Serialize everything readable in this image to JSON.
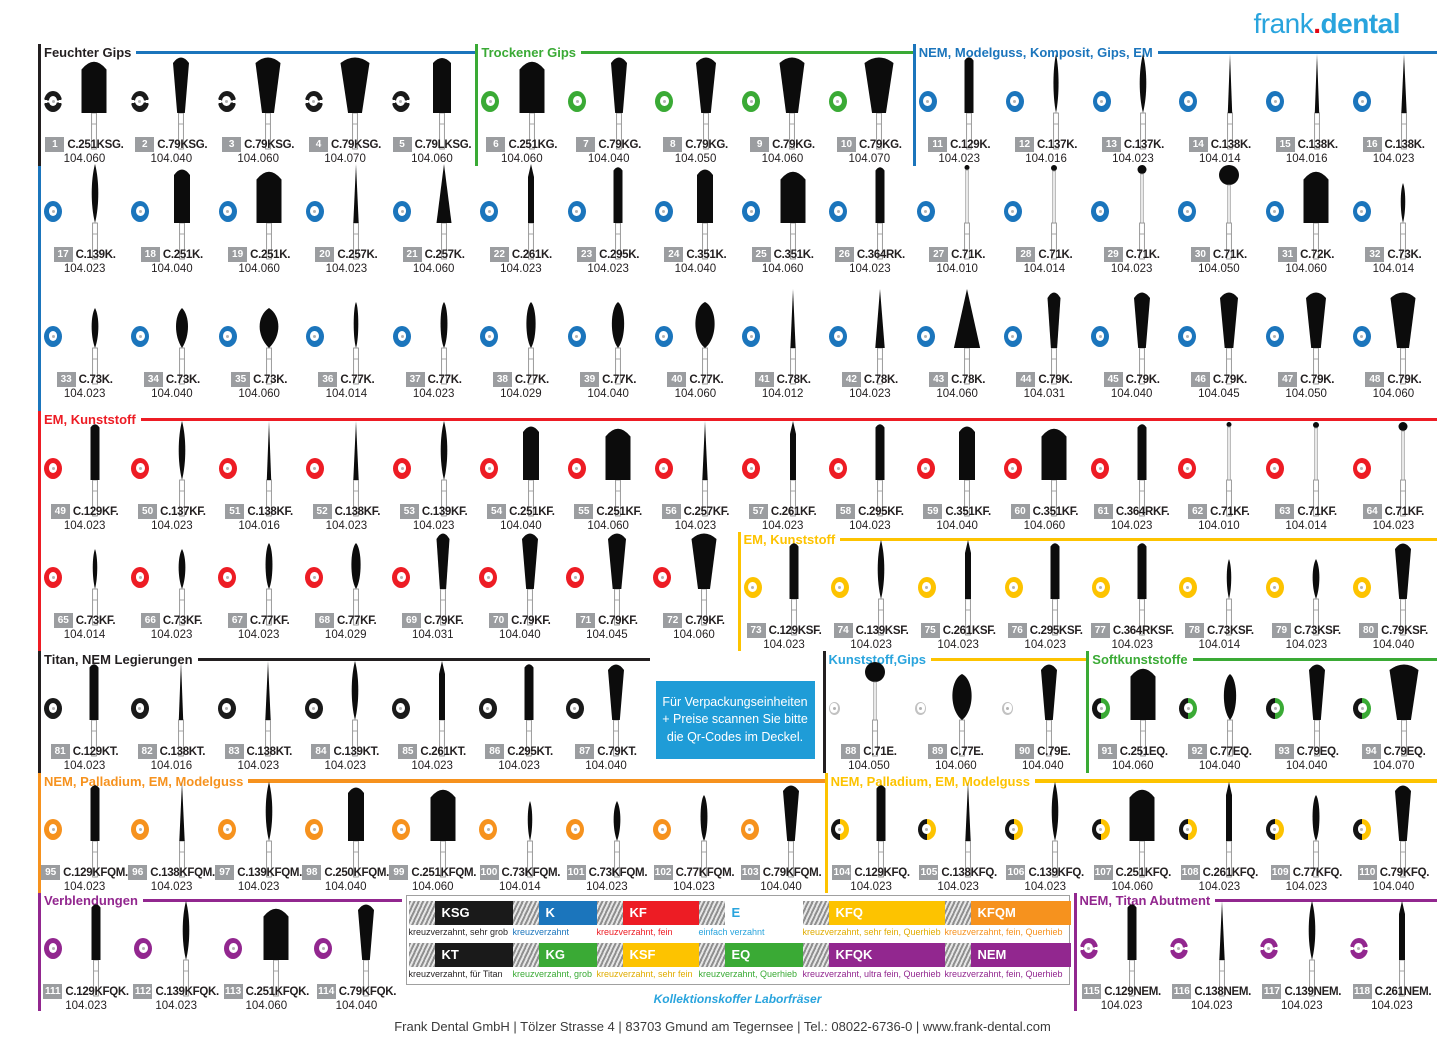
{
  "brand": {
    "word1": "frank",
    "dot": ".",
    "word2": "dental"
  },
  "info_box": {
    "lines": [
      "Für Verpackungseinheiten",
      "+ Preise scannen Sie bitte",
      "die Qr-Codes im Deckel."
    ]
  },
  "legend": {
    "caption": "Kollektionskoffer Laborfräser",
    "entries": [
      {
        "code": "KSG",
        "chip": "#1a1a1a",
        "code_color": "#ffffff",
        "desc": "kreuzverzahnt, sehr grob",
        "desc_color": "#231f20"
      },
      {
        "code": "K",
        "chip": "#1b75bc",
        "code_color": "#ffffff",
        "desc": "kreuzverzahnt",
        "desc_color": "#1b75bc"
      },
      {
        "code": "KF",
        "chip": "#ed1c24",
        "code_color": "#ffffff",
        "desc": "kreuzverzahnt, fein",
        "desc_color": "#ed1c24"
      },
      {
        "code": "E",
        "chip": "none",
        "code_color": "#29a4dd",
        "desc": "einfach verzahnt",
        "desc_color": "#29a4dd"
      },
      {
        "code": "KFQ",
        "chip": "#fdc300",
        "code_color": "#ffffff",
        "desc": "kreuzverzahnt, sehr fein, Querhieb",
        "desc_color": "#e0ac00"
      },
      {
        "code": "KFQM",
        "chip": "#f6921e",
        "code_color": "#ffffff",
        "desc": "kreuzverzahnt, fein, Querhieb",
        "desc_color": "#f6921e"
      },
      {
        "code": "KT",
        "chip": "#1a1a1a",
        "code_color": "#ffffff",
        "desc": "kreuzverzahnt, für Titan",
        "desc_color": "#231f20"
      },
      {
        "code": "KG",
        "chip": "#3aaa35",
        "code_color": "#ffffff",
        "desc": "kreuzverzahnt, grob",
        "desc_color": "#3aaa35"
      },
      {
        "code": "KSF",
        "chip": "#fdc300",
        "code_color": "#ffffff",
        "desc": "kreuzverzahnt, sehr fein",
        "desc_color": "#e0ac00"
      },
      {
        "code": "EQ",
        "chip": "#3aaa35",
        "code_color": "#ffffff",
        "desc": "kreuzverzahnt, Querhieb",
        "desc_color": "#3aaa35"
      },
      {
        "code": "KFQK",
        "chip": "#92278f",
        "code_color": "#ffffff",
        "desc": "kreuzverzahnt, ultra fein, Querhieb",
        "desc_color": "#92278f"
      },
      {
        "code": "NEM",
        "chip": "#92278f",
        "code_color": "#ffffff",
        "desc": "kreuzverzahnt, fein, Querhieb",
        "desc_color": "#92278f"
      }
    ]
  },
  "footer": {
    "text": "Frank Dental GmbH | Tölzer Strasse 4 | 83703 Gmund am Tegernsee | Tel.: 08022-6736-0 | www.frank-dental.com"
  },
  "sections": [
    {
      "id": "feuchter-gips",
      "label": "Feuchter Gips",
      "label_color": "#231f20",
      "line_color": "#1b75bc",
      "bar_color": "#231f20",
      "ring": {
        "style": "seg",
        "color": "#1a1a1a"
      },
      "items": [
        {
          "n": 1,
          "c": "C.251KSG.",
          "s": "104.060"
        },
        {
          "n": 2,
          "c": "C.79KSG.",
          "s": "104.040"
        },
        {
          "n": 3,
          "c": "C.79KSG.",
          "s": "104.060"
        },
        {
          "n": 4,
          "c": "C.79KSG.",
          "s": "104.070"
        },
        {
          "n": 5,
          "c": "C.79LKSG.",
          "s": "104.060"
        }
      ]
    },
    {
      "id": "trockener-gips",
      "label": "Trockener Gips",
      "label_color": "#3aaa35",
      "line_color": "#3aaa35",
      "bar_color": "#3aaa35",
      "ring": {
        "style": "solid",
        "color": "#3aaa35"
      },
      "items": [
        {
          "n": 6,
          "c": "C.251KG.",
          "s": "104.060"
        },
        {
          "n": 7,
          "c": "C.79KG.",
          "s": "104.040"
        },
        {
          "n": 8,
          "c": "C.79KG.",
          "s": "104.050"
        },
        {
          "n": 9,
          "c": "C.79KG.",
          "s": "104.060"
        },
        {
          "n": 10,
          "c": "C.79KG.",
          "s": "104.070"
        }
      ]
    },
    {
      "id": "nem-modelguss-komposit-gips-em",
      "label": "NEM, Modelguss, Komposit, Gips, EM",
      "label_color": "#1b75bc",
      "line_color": "#1b75bc",
      "bar_color": "#1b75bc",
      "ring": {
        "style": "solid",
        "color": "#1b75bc"
      },
      "items": [
        {
          "n": 11,
          "c": "C.129K.",
          "s": "104.023"
        },
        {
          "n": 12,
          "c": "C.137K.",
          "s": "104.016"
        },
        {
          "n": 13,
          "c": "C.137K.",
          "s": "104.023"
        },
        {
          "n": 14,
          "c": "C.138K.",
          "s": "104.014"
        },
        {
          "n": 15,
          "c": "C.138K.",
          "s": "104.016"
        },
        {
          "n": 16,
          "c": "C.138K.",
          "s": "104.023"
        },
        {
          "n": 17,
          "c": "C.139K.",
          "s": "104.023"
        },
        {
          "n": 18,
          "c": "C.251K.",
          "s": "104.040"
        },
        {
          "n": 19,
          "c": "C.251K.",
          "s": "104.060"
        },
        {
          "n": 20,
          "c": "C.257K.",
          "s": "104.023"
        },
        {
          "n": 21,
          "c": "C.257K.",
          "s": "104.060"
        },
        {
          "n": 22,
          "c": "C.261K.",
          "s": "104.023"
        },
        {
          "n": 23,
          "c": "C.295K.",
          "s": "104.023"
        },
        {
          "n": 24,
          "c": "C.351K.",
          "s": "104.040"
        },
        {
          "n": 25,
          "c": "C.351K.",
          "s": "104.060"
        },
        {
          "n": 26,
          "c": "C.364RK.",
          "s": "104.023"
        },
        {
          "n": 27,
          "c": "C.71K.",
          "s": "104.010"
        },
        {
          "n": 28,
          "c": "C.71K.",
          "s": "104.014"
        },
        {
          "n": 29,
          "c": "C.71K.",
          "s": "104.023"
        },
        {
          "n": 30,
          "c": "C.71K.",
          "s": "104.050"
        },
        {
          "n": 31,
          "c": "C.72K.",
          "s": "104.060"
        },
        {
          "n": 32,
          "c": "C.73K.",
          "s": "104.014"
        },
        {
          "n": 33,
          "c": "C.73K.",
          "s": "104.023"
        },
        {
          "n": 34,
          "c": "C.73K.",
          "s": "104.040"
        },
        {
          "n": 35,
          "c": "C.73K.",
          "s": "104.060"
        },
        {
          "n": 36,
          "c": "C.77K.",
          "s": "104.014"
        },
        {
          "n": 37,
          "c": "C.77K.",
          "s": "104.023"
        },
        {
          "n": 38,
          "c": "C.77K.",
          "s": "104.029"
        },
        {
          "n": 39,
          "c": "C.77K.",
          "s": "104.040"
        },
        {
          "n": 40,
          "c": "C.77K.",
          "s": "104.060"
        },
        {
          "n": 41,
          "c": "C.78K.",
          "s": "104.012"
        },
        {
          "n": 42,
          "c": "C.78K.",
          "s": "104.023"
        },
        {
          "n": 43,
          "c": "C.78K.",
          "s": "104.060"
        },
        {
          "n": 44,
          "c": "C.79K.",
          "s": "104.031"
        },
        {
          "n": 45,
          "c": "C.79K.",
          "s": "104.040"
        },
        {
          "n": 46,
          "c": "C.79K.",
          "s": "104.045"
        },
        {
          "n": 47,
          "c": "C.79K.",
          "s": "104.050"
        },
        {
          "n": 48,
          "c": "C.79K.",
          "s": "104.060"
        }
      ]
    },
    {
      "id": "em-kunststoff-rot",
      "label": "EM, Kunststoff",
      "label_color": "#ed1c24",
      "line_color": "#ed1c24",
      "bar_color": "#ed1c24",
      "ring": {
        "style": "solid",
        "color": "#ed1c24"
      },
      "items": [
        {
          "n": 49,
          "c": "C.129KF.",
          "s": "104.023"
        },
        {
          "n": 50,
          "c": "C.137KF.",
          "s": "104.023"
        },
        {
          "n": 51,
          "c": "C.138KF.",
          "s": "104.016"
        },
        {
          "n": 52,
          "c": "C.138KF.",
          "s": "104.023"
        },
        {
          "n": 53,
          "c": "C.139KF.",
          "s": "104.023"
        },
        {
          "n": 54,
          "c": "C.251KF.",
          "s": "104.040"
        },
        {
          "n": 55,
          "c": "C.251KF.",
          "s": "104.060"
        },
        {
          "n": 56,
          "c": "C.257KF.",
          "s": "104.023"
        },
        {
          "n": 57,
          "c": "C.261KF.",
          "s": "104.023"
        },
        {
          "n": 58,
          "c": "C.295KF.",
          "s": "104.023"
        },
        {
          "n": 59,
          "c": "C.351KF.",
          "s": "104.040"
        },
        {
          "n": 60,
          "c": "C.351KF.",
          "s": "104.060"
        },
        {
          "n": 61,
          "c": "C.364RKF.",
          "s": "104.023"
        },
        {
          "n": 62,
          "c": "C.71KF.",
          "s": "104.010"
        },
        {
          "n": 63,
          "c": "C.71KF.",
          "s": "104.014"
        },
        {
          "n": 64,
          "c": "C.71KF.",
          "s": "104.023"
        },
        {
          "n": 65,
          "c": "C.73KF.",
          "s": "104.014"
        },
        {
          "n": 66,
          "c": "C.73KF.",
          "s": "104.023"
        },
        {
          "n": 67,
          "c": "C.77KF.",
          "s": "104.023"
        },
        {
          "n": 68,
          "c": "C.77KF.",
          "s": "104.029"
        },
        {
          "n": 69,
          "c": "C.79KF.",
          "s": "104.031"
        },
        {
          "n": 70,
          "c": "C.79KF.",
          "s": "104.040"
        },
        {
          "n": 71,
          "c": "C.79KF.",
          "s": "104.045"
        },
        {
          "n": 72,
          "c": "C.79KF.",
          "s": "104.060"
        }
      ]
    },
    {
      "id": "em-kunststoff-gelb",
      "label": "EM, Kunststoff",
      "label_color": "#fdc300",
      "line_color": "#fdc300",
      "bar_color": "#fdc300",
      "ring": {
        "style": "solid",
        "color": "#fdc300"
      },
      "items": [
        {
          "n": 73,
          "c": "C.129KSF.",
          "s": "104.023"
        },
        {
          "n": 74,
          "c": "C.139KSF.",
          "s": "104.023"
        },
        {
          "n": 75,
          "c": "C.261KSF.",
          "s": "104.023"
        },
        {
          "n": 76,
          "c": "C.295KSF.",
          "s": "104.023"
        },
        {
          "n": 77,
          "c": "C.364RKSF.",
          "s": "104.023"
        },
        {
          "n": 78,
          "c": "C.73KSF.",
          "s": "104.014"
        },
        {
          "n": 79,
          "c": "C.73KSF.",
          "s": "104.023"
        },
        {
          "n": 80,
          "c": "C.79KSF.",
          "s": "104.040"
        }
      ]
    },
    {
      "id": "titan-nem-legierungen",
      "label": "Titan, NEM Legierungen",
      "label_color": "#231f20",
      "line_color": "#231f20",
      "bar_color": "#231f20",
      "ring": {
        "style": "solid",
        "color": "#1a1a1a"
      },
      "items": [
        {
          "n": 81,
          "c": "C.129KT.",
          "s": "104.023"
        },
        {
          "n": 82,
          "c": "C.138KT.",
          "s": "104.016"
        },
        {
          "n": 83,
          "c": "C.138KT.",
          "s": "104.023"
        },
        {
          "n": 84,
          "c": "C.139KT.",
          "s": "104.023"
        },
        {
          "n": 85,
          "c": "C.261KT.",
          "s": "104.023"
        },
        {
          "n": 86,
          "c": "C.295KT.",
          "s": "104.023"
        },
        {
          "n": 87,
          "c": "C.79KT.",
          "s": "104.040"
        }
      ]
    },
    {
      "id": "kunststoff-gips",
      "label": "Kunststoff,Gips",
      "label_color": "#29a4dd",
      "line_color": "#fdc300",
      "bar_color": "#231f20",
      "ring": {
        "style": "thin",
        "color": "#c2c2c2"
      },
      "items": [
        {
          "n": 88,
          "c": "C.71E.",
          "s": "104.050"
        },
        {
          "n": 89,
          "c": "C.77E.",
          "s": "104.060"
        },
        {
          "n": 90,
          "c": "C.79E.",
          "s": "104.040"
        }
      ]
    },
    {
      "id": "softkunststoffe",
      "label": "Softkunststoffe",
      "label_color": "#3aaa35",
      "line_color": "#3aaa35",
      "bar_color": "#3aaa35",
      "ring": {
        "style": "half",
        "color": "#141414",
        "color2": "#3aaa35"
      },
      "items": [
        {
          "n": 91,
          "c": "C.251EQ.",
          "s": "104.060"
        },
        {
          "n": 92,
          "c": "C.77EQ.",
          "s": "104.040"
        },
        {
          "n": 93,
          "c": "C.79EQ.",
          "s": "104.040"
        },
        {
          "n": 94,
          "c": "C.79EQ.",
          "s": "104.070"
        }
      ]
    },
    {
      "id": "nem-palladium-em-modelguss-orange",
      "label": "NEM, Palladium, EM, Modelguss",
      "label_color": "#f6921e",
      "line_color": "#f6921e",
      "bar_color": "#f6921e",
      "ring": {
        "style": "solid",
        "color": "#f6921e"
      },
      "items": [
        {
          "n": 95,
          "c": "C.129KFQM.",
          "s": "104.023"
        },
        {
          "n": 96,
          "c": "C.138KFQM.",
          "s": "104.023"
        },
        {
          "n": 97,
          "c": "C.139KFQM.",
          "s": "104.023"
        },
        {
          "n": 98,
          "c": "C.250KFQM.",
          "s": "104.040"
        },
        {
          "n": 99,
          "c": "C.251KFQM.",
          "s": "104.060"
        },
        {
          "n": 100,
          "c": "C.73KFQM.",
          "s": "104.014"
        },
        {
          "n": 101,
          "c": "C.73KFQM.",
          "s": "104.023"
        },
        {
          "n": 102,
          "c": "C.77KFQM.",
          "s": "104.023"
        },
        {
          "n": 103,
          "c": "C.79KFQM.",
          "s": "104.040"
        }
      ]
    },
    {
      "id": "nem-palladium-em-modelguss-gelb",
      "label": "NEM, Palladium, EM, Modelguss",
      "label_color": "#fdc300",
      "line_color": "#fdc300",
      "bar_color": "#fdc300",
      "ring": {
        "style": "half",
        "color": "#141414",
        "color2": "#fdc300"
      },
      "items": [
        {
          "n": 104,
          "c": "C.129KFQ.",
          "s": "104.023"
        },
        {
          "n": 105,
          "c": "C.138KFQ.",
          "s": "104.023"
        },
        {
          "n": 106,
          "c": "C.139KFQ.",
          "s": "104.023"
        },
        {
          "n": 107,
          "c": "C.251KFQ.",
          "s": "104.060"
        },
        {
          "n": 108,
          "c": "C.261KFQ.",
          "s": "104.023"
        },
        {
          "n": 109,
          "c": "C.77KFQ.",
          "s": "104.023"
        },
        {
          "n": 110,
          "c": "C.79KFQ.",
          "s": "104.040"
        }
      ]
    },
    {
      "id": "verblendungen",
      "label": "Verblendungen",
      "label_color": "#92278f",
      "line_color": "#92278f",
      "bar_color": "#92278f",
      "ring": {
        "style": "solid",
        "color": "#92278f"
      },
      "items": [
        {
          "n": 111,
          "c": "C.129KFQK.",
          "s": "104.023"
        },
        {
          "n": 112,
          "c": "C.139KFQK.",
          "s": "104.023"
        },
        {
          "n": 113,
          "c": "C.251KFQK.",
          "s": "104.060"
        },
        {
          "n": 114,
          "c": "C.79KFQK.",
          "s": "104.040"
        }
      ]
    },
    {
      "id": "nem-titan-abutment",
      "label": "NEM, Titan Abutment",
      "label_color": "#92278f",
      "line_color": "#92278f",
      "bar_color": "#92278f",
      "ring": {
        "style": "seg",
        "color": "#92278f"
      },
      "items": [
        {
          "n": 115,
          "c": "C.129NEM.",
          "s": "104.023"
        },
        {
          "n": 116,
          "c": "C.138NEM.",
          "s": "104.023"
        },
        {
          "n": 117,
          "c": "C.139NEM.",
          "s": "104.023"
        },
        {
          "n": 118,
          "c": "C.261NEM.",
          "s": "104.023"
        }
      ]
    }
  ]
}
